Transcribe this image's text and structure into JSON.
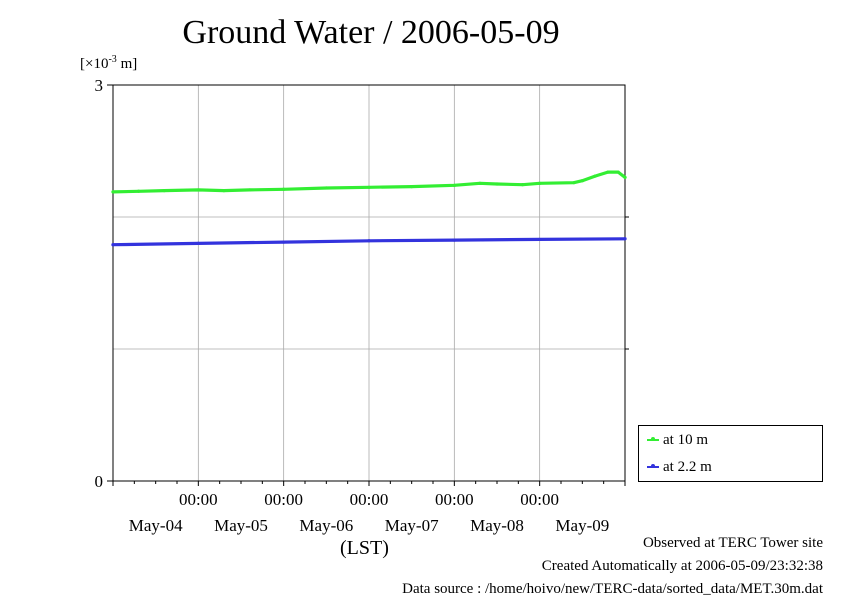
{
  "title": "Ground Water / 2006-05-09",
  "chart_data": {
    "type": "line",
    "title": "Ground Water / 2006-05-09",
    "ylabel_unit_prefix": "[×10",
    "ylabel_unit_exp": "-3",
    "ylabel_unit_suffix": " m]",
    "ylim": [
      0,
      3
    ],
    "ytick_labels": [
      "0",
      "3"
    ],
    "yticks": [
      0,
      3
    ],
    "ygrid": [
      1,
      2
    ],
    "xlim": [
      0,
      6
    ],
    "time_tick_labels": [
      "00:00",
      "00:00",
      "00:00",
      "00:00",
      "00:00"
    ],
    "date_labels": [
      "May-04",
      "May-05",
      "May-06",
      "May-07",
      "May-08",
      "May-09"
    ],
    "x_unit_label": "(LST)",
    "grid": true,
    "legend_placement": "bottom-right, outside plot",
    "series": [
      {
        "name": "at 10 m",
        "color": "#33ee33",
        "x": [
          0,
          0.3,
          0.6,
          1.0,
          1.3,
          1.6,
          2.0,
          2.5,
          3.0,
          3.5,
          4.0,
          4.3,
          4.5,
          4.8,
          5.0,
          5.4,
          5.5,
          5.65,
          5.8,
          5.92,
          6.0
        ],
        "y": [
          2.19,
          2.195,
          2.2,
          2.205,
          2.2,
          2.205,
          2.21,
          2.22,
          2.225,
          2.23,
          2.24,
          2.255,
          2.25,
          2.245,
          2.255,
          2.26,
          2.275,
          2.31,
          2.34,
          2.34,
          2.3
        ]
      },
      {
        "name": "at 2.2 m",
        "color": "#3333dd",
        "x": [
          0,
          1.0,
          2.0,
          3.0,
          4.0,
          5.0,
          6.0
        ],
        "y": [
          1.79,
          1.8,
          1.81,
          1.82,
          1.825,
          1.83,
          1.835
        ]
      }
    ]
  },
  "footer": {
    "observed": "Observed at TERC Tower site",
    "created": "Created Automatically at 2006-05-09/23:32:38",
    "source": "Data source : /home/hoivo/new/TERC-data/sorted_data/MET.30m.dat"
  }
}
